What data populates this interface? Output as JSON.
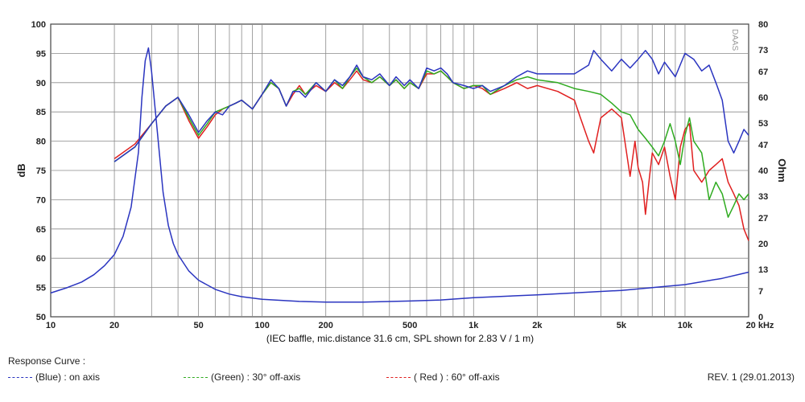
{
  "chart_data": {
    "type": "line",
    "xscale": "log",
    "xlim": [
      10,
      20000
    ],
    "x_ticks": [
      {
        "v": 10,
        "label": "10"
      },
      {
        "v": 20,
        "label": "20"
      },
      {
        "v": 50,
        "label": "50"
      },
      {
        "v": 100,
        "label": "100"
      },
      {
        "v": 200,
        "label": "200"
      },
      {
        "v": 500,
        "label": "500"
      },
      {
        "v": 1000,
        "label": "1k"
      },
      {
        "v": 2000,
        "label": "2k"
      },
      {
        "v": 5000,
        "label": "5k"
      },
      {
        "v": 10000,
        "label": "10k"
      },
      {
        "v": 20000,
        "label": "20 kHz"
      }
    ],
    "x_caption": "(IEC baffle, mic.distance 31.6 cm, SPL shown for 2.83 V / 1 m)",
    "ylabel": "dB",
    "ylim": [
      50,
      100
    ],
    "y_ticks": [
      50,
      55,
      60,
      65,
      70,
      75,
      80,
      85,
      90,
      95,
      100
    ],
    "y2label": "Ohm",
    "y2lim": [
      0,
      80
    ],
    "y2_ticks": [
      {
        "v": 0,
        "label": "0"
      },
      {
        "v": 7,
        "label": "7"
      },
      {
        "v": 13,
        "label": "13"
      },
      {
        "v": 20,
        "label": "20"
      },
      {
        "v": 27,
        "label": "27"
      },
      {
        "v": 33,
        "label": "33"
      },
      {
        "v": 40,
        "label": "40"
      },
      {
        "v": 47,
        "label": "47"
      },
      {
        "v": 53,
        "label": "53"
      },
      {
        "v": 60,
        "label": "60"
      },
      {
        "v": 67,
        "label": "67"
      },
      {
        "v": 73,
        "label": "73"
      },
      {
        "v": 80,
        "label": "80"
      }
    ],
    "grid": true,
    "series": [
      {
        "name": "impedance",
        "axis": "y2",
        "color": "#2b35c0",
        "x": [
          10,
          12,
          14,
          16,
          18,
          20,
          22,
          24,
          26,
          27,
          28,
          29,
          30,
          32,
          34,
          36,
          38,
          40,
          45,
          50,
          60,
          70,
          80,
          100,
          150,
          200,
          300,
          500,
          700,
          1000,
          2000,
          5000,
          10000,
          15000,
          20000
        ],
        "y": [
          6.5,
          8,
          9.5,
          11.5,
          14,
          17,
          22,
          30,
          45,
          60,
          70,
          73.5,
          67,
          50,
          34,
          25,
          20,
          17,
          12.5,
          10,
          7.5,
          6.2,
          5.5,
          4.8,
          4.2,
          4.0,
          4.0,
          4.3,
          4.6,
          5.2,
          6.0,
          7.2,
          8.8,
          10.5,
          12.2
        ]
      },
      {
        "name": "on axis",
        "axis": "y",
        "color": "#2b35c0",
        "x": [
          20,
          25,
          30,
          35,
          40,
          45,
          50,
          55,
          60,
          65,
          70,
          75,
          80,
          90,
          100,
          110,
          120,
          130,
          140,
          150,
          160,
          180,
          200,
          220,
          240,
          260,
          280,
          300,
          330,
          360,
          400,
          430,
          470,
          500,
          550,
          600,
          650,
          700,
          750,
          800,
          900,
          1000,
          1100,
          1200,
          1400,
          1600,
          1800,
          2000,
          2500,
          3000,
          3500,
          3700,
          4000,
          4500,
          5000,
          5500,
          6000,
          6500,
          7000,
          7500,
          8000,
          9000,
          10000,
          11000,
          12000,
          13000,
          14000,
          15000,
          16000,
          17000,
          18000,
          19000,
          20000
        ],
        "y": [
          76.5,
          79,
          83,
          86,
          87.5,
          84.5,
          81.5,
          83.5,
          85,
          84.5,
          86,
          86.5,
          87,
          85.5,
          88,
          90.5,
          89,
          86,
          88.5,
          88.5,
          87.5,
          90,
          88.5,
          90.5,
          89.5,
          91,
          93,
          91,
          90.5,
          91.5,
          89.5,
          91,
          89.5,
          90.5,
          89,
          92.5,
          92,
          92.5,
          91.5,
          90,
          89.5,
          89,
          89.5,
          88.5,
          89.5,
          91,
          92,
          91.5,
          91.5,
          91.5,
          93,
          95.5,
          94,
          92,
          94,
          92.5,
          94,
          95.5,
          94,
          91.5,
          93.5,
          91,
          95,
          94,
          92,
          93,
          90,
          87,
          80,
          78,
          80,
          82,
          81
        ]
      },
      {
        "name": "30° off-axis",
        "axis": "y",
        "color": "#2fab20",
        "x": [
          20,
          25,
          30,
          35,
          40,
          45,
          50,
          55,
          60,
          65,
          70,
          75,
          80,
          90,
          100,
          110,
          120,
          130,
          140,
          150,
          160,
          180,
          200,
          220,
          240,
          260,
          280,
          300,
          330,
          360,
          400,
          430,
          470,
          500,
          550,
          600,
          650,
          700,
          750,
          800,
          900,
          1000,
          1100,
          1200,
          1400,
          1600,
          1800,
          2000,
          2500,
          3000,
          3500,
          4000,
          4500,
          5000,
          5500,
          6000,
          6500,
          7000,
          7500,
          8000,
          8500,
          9000,
          9500,
          10000,
          10500,
          11000,
          12000,
          12500,
          13000,
          14000,
          15000,
          16000,
          17000,
          18000,
          19000,
          20000
        ],
        "y": [
          76.5,
          79,
          83,
          86,
          87.5,
          84,
          81,
          83,
          85,
          85.5,
          86,
          86.5,
          87,
          85.5,
          88,
          90,
          89,
          86,
          88.5,
          89,
          88,
          90,
          88.5,
          90.5,
          89,
          91,
          92.5,
          91,
          90,
          91,
          89.5,
          90.5,
          89,
          90,
          89,
          92,
          91.5,
          92,
          91,
          90,
          89,
          89.5,
          89.5,
          88,
          89.5,
          90.5,
          91,
          90.5,
          90,
          89,
          88.5,
          88,
          86.5,
          85,
          84.5,
          82,
          80.5,
          79,
          77.5,
          80,
          83,
          80,
          76,
          81,
          84,
          80,
          78,
          74,
          70,
          73,
          71,
          67,
          69,
          71,
          70,
          71
        ]
      },
      {
        "name": "60° off-axis",
        "axis": "y",
        "color": "#e02020",
        "x": [
          20,
          25,
          30,
          35,
          40,
          45,
          50,
          55,
          60,
          65,
          70,
          75,
          80,
          90,
          100,
          110,
          120,
          130,
          140,
          150,
          160,
          180,
          200,
          220,
          240,
          260,
          280,
          300,
          330,
          360,
          400,
          430,
          470,
          500,
          550,
          600,
          650,
          700,
          750,
          800,
          900,
          1000,
          1100,
          1200,
          1400,
          1600,
          1800,
          2000,
          2500,
          3000,
          3200,
          3500,
          3700,
          4000,
          4500,
          5000,
          5500,
          5800,
          6000,
          6300,
          6500,
          6800,
          7000,
          7500,
          8000,
          8500,
          9000,
          9500,
          10000,
          10500,
          11000,
          12000,
          12500,
          13000,
          14000,
          15000,
          16000,
          17000,
          18000,
          19000,
          20000
        ],
        "y": [
          77,
          79.5,
          83,
          86,
          87.5,
          83.5,
          80.5,
          82.5,
          84.5,
          85.5,
          86,
          86.5,
          87,
          85.5,
          88,
          90,
          89,
          86,
          88,
          89.5,
          88,
          89.5,
          88.5,
          90,
          89,
          90.5,
          92,
          90.5,
          90,
          91,
          89.5,
          90.5,
          89,
          90,
          89,
          91.5,
          91.5,
          92,
          91,
          90,
          89,
          89.5,
          89,
          88,
          89,
          90,
          89,
          89.5,
          88.5,
          87,
          84,
          80,
          78,
          84,
          85.5,
          84,
          74,
          80,
          75.5,
          73,
          67.5,
          74,
          78,
          76,
          79,
          74,
          70,
          79,
          82,
          83,
          75,
          73,
          74,
          75,
          76,
          77,
          73,
          71,
          69,
          65,
          63
        ]
      }
    ]
  },
  "legend": {
    "heading": "Response Curve :",
    "items": [
      {
        "label": "(Blue)  : on axis",
        "color": "#2b35c0"
      },
      {
        "label": "(Green) : 30° off-axis",
        "color": "#2fab20"
      },
      {
        "label": "( Red ) : 60° off-axis",
        "color": "#e02020"
      }
    ],
    "revision": "REV. 1 (29.01.2013)"
  },
  "brand_mark": "DAAS"
}
